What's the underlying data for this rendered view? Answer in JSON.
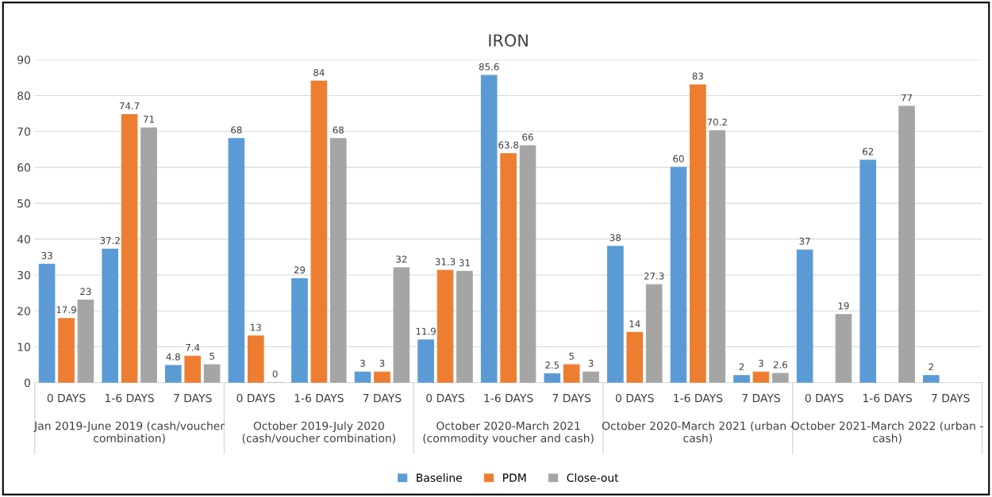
{
  "chart_data": {
    "type": "bar",
    "title": "IRON",
    "categories": [
      "0 DAYS",
      "1-6 DAYS",
      "7 DAYS",
      "0 DAYS",
      "1-6 DAYS",
      "7 DAYS",
      "0 DAYS",
      "1-6 DAYS",
      "7 DAYS",
      "0 DAYS",
      "1-6 DAYS",
      "7 DAYS",
      "0 DAYS",
      "1-6 DAYS",
      "7 DAYS"
    ],
    "annotations": [
      "Jan 2019-June 2019 (cash/voucher\ncombination)",
      "October 2019-July 2020\n(cash/voucher combination)",
      "October 2020-March 2021\n(commodity voucher and cash)",
      "October 2020-March 2021 (urban -\ncash)",
      "October 2021-March 2022 (urban -\ncash)"
    ],
    "series": [
      {
        "name": "Baseline",
        "color": "#5b9bd5",
        "values": [
          33,
          37.2,
          4.8,
          68,
          29,
          3,
          11.9,
          85.6,
          2.5,
          38,
          60,
          2,
          37,
          62,
          2
        ]
      },
      {
        "name": "PDM",
        "color": "#ed7d31",
        "values": [
          17.9,
          74.7,
          7.4,
          13,
          84,
          3,
          31.3,
          63.8,
          5,
          14,
          83,
          3,
          null,
          null,
          null
        ]
      },
      {
        "name": "Close-out",
        "color": "#a5a5a5",
        "values": [
          23,
          71,
          5,
          0,
          68,
          32,
          31,
          66,
          3,
          27.3,
          70.2,
          2.6,
          19,
          77,
          null
        ]
      }
    ],
    "ylim": [
      0,
      90
    ],
    "yticks": [
      0,
      10,
      20,
      30,
      40,
      50,
      60,
      70,
      80,
      90
    ],
    "grid": "y",
    "legend": "bottom",
    "data_labels": true
  }
}
